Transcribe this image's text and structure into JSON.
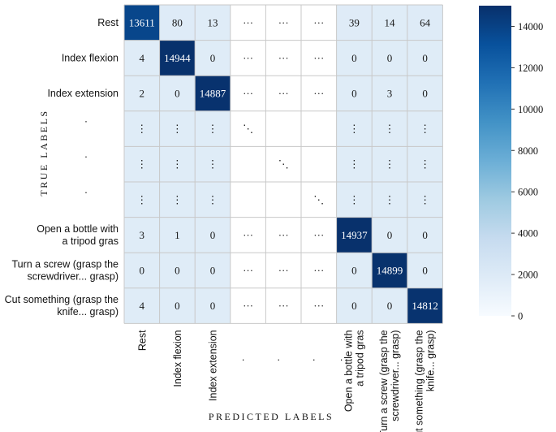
{
  "chart_data": {
    "type": "heatmap",
    "title": "",
    "xlabel": "PREDICTED LABELS",
    "ylabel": "TRUE LABELS",
    "row_labels": [
      [
        "Rest"
      ],
      [
        "Index flexion"
      ],
      [
        "Index extension"
      ],
      [
        "."
      ],
      [
        "."
      ],
      [
        "."
      ],
      [
        "Open a bottle with",
        "a tripod gras"
      ],
      [
        "Turn a screw (grasp the",
        "screwdriver... grasp)"
      ],
      [
        "Cut something (grasp the",
        "knife... grasp)"
      ]
    ],
    "col_labels": [
      [
        "Rest"
      ],
      [
        "Index flexion"
      ],
      [
        "Index extension"
      ],
      [
        "."
      ],
      [
        "."
      ],
      [
        "."
      ],
      [
        "Open a bottle with",
        "a tripod gras"
      ],
      [
        "Turn a screw (grasp the",
        "screwdriver... grasp)"
      ],
      [
        "Cut something (grasp the",
        "knife... grasp)"
      ]
    ],
    "extra_col_dots": [
      "."
    ],
    "cells": [
      [
        "13611",
        "80",
        "13",
        "···",
        "···",
        "···",
        "39",
        "14",
        "64"
      ],
      [
        "4",
        "14944",
        "0",
        "···",
        "···",
        "···",
        "0",
        "0",
        "0"
      ],
      [
        "2",
        "0",
        "14887",
        "···",
        "···",
        "···",
        "0",
        "3",
        "0"
      ],
      [
        "⋮",
        "⋮",
        "⋮",
        "⋱",
        "",
        "",
        "⋮",
        "⋮",
        "⋮"
      ],
      [
        "⋮",
        "⋮",
        "⋮",
        "",
        "⋱",
        "",
        "⋮",
        "⋮",
        "⋮"
      ],
      [
        "⋮",
        "⋮",
        "⋮",
        "",
        "",
        "⋱",
        "⋮",
        "⋮",
        "⋮"
      ],
      [
        "3",
        "1",
        "0",
        "···",
        "···",
        "···",
        "14937",
        "0",
        "0"
      ],
      [
        "0",
        "0",
        "0",
        "···",
        "···",
        "···",
        "0",
        "14899",
        "0"
      ],
      [
        "4",
        "0",
        "0",
        "···",
        "···",
        "···",
        "0",
        "0",
        "14812"
      ]
    ],
    "values": [
      [
        13611,
        80,
        13,
        null,
        null,
        null,
        39,
        14,
        64
      ],
      [
        4,
        14944,
        0,
        null,
        null,
        null,
        0,
        0,
        0
      ],
      [
        2,
        0,
        14887,
        null,
        null,
        null,
        0,
        3,
        0
      ],
      [
        0,
        0,
        0,
        null,
        null,
        null,
        0,
        0,
        0
      ],
      [
        0,
        0,
        0,
        null,
        null,
        null,
        0,
        0,
        0
      ],
      [
        0,
        0,
        0,
        null,
        null,
        null,
        0,
        0,
        0
      ],
      [
        3,
        1,
        0,
        null,
        null,
        null,
        14937,
        0,
        0
      ],
      [
        0,
        0,
        0,
        null,
        null,
        null,
        0,
        14899,
        0
      ],
      [
        4,
        0,
        0,
        null,
        null,
        null,
        0,
        0,
        14812
      ]
    ],
    "colorbar": {
      "min": 0,
      "max": 15000,
      "ticks": [
        0,
        2000,
        4000,
        6000,
        8000,
        10000,
        12000,
        14000
      ],
      "tick_labels": [
        "0",
        "2000",
        "4000",
        "6000",
        "8000",
        "10000",
        "12000",
        "14000"
      ],
      "colormap": "Blues"
    },
    "colors": {
      "low": "#f7fbff",
      "mid": "#6baed6",
      "high": "#08306b",
      "blank": "#ffffff",
      "grid": "#c8c8c8"
    }
  }
}
